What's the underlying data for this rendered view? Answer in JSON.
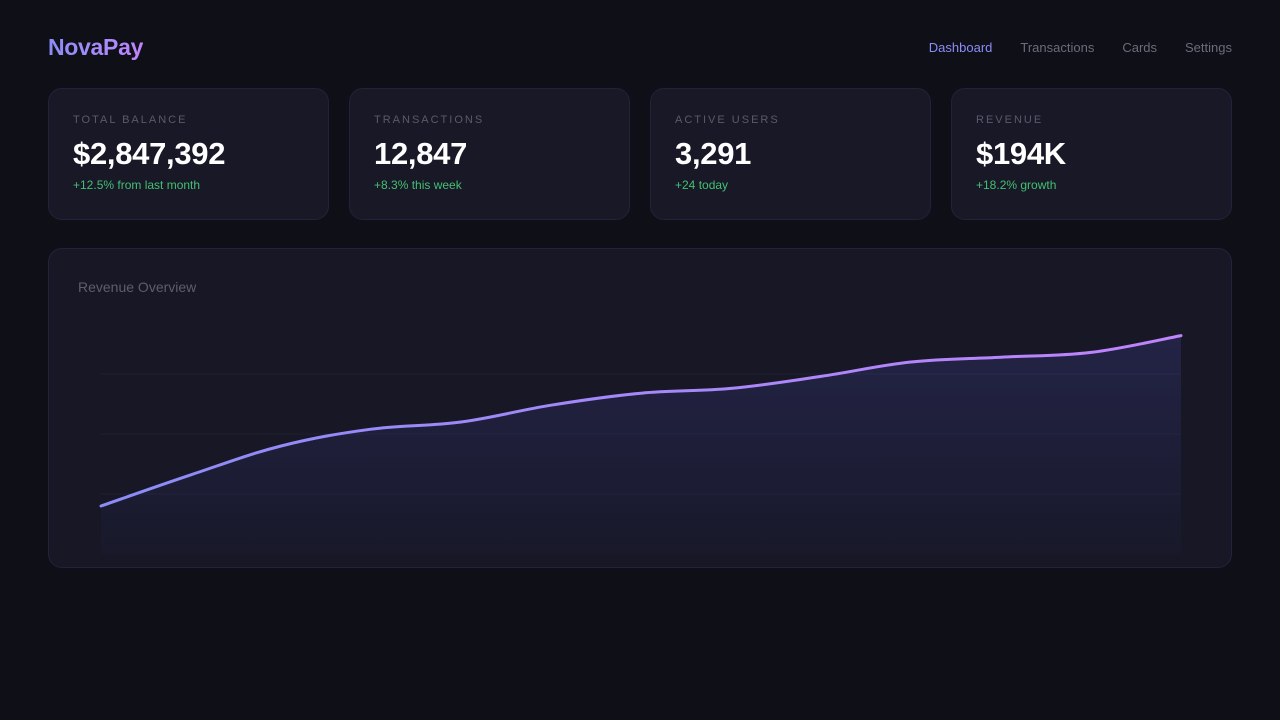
{
  "header": {
    "logo": "NovaPay",
    "nav": [
      {
        "label": "Dashboard",
        "active": true
      },
      {
        "label": "Transactions",
        "active": false
      },
      {
        "label": "Cards",
        "active": false
      },
      {
        "label": "Settings",
        "active": false
      }
    ]
  },
  "stats": [
    {
      "label": "TOTAL BALANCE",
      "value": "$2,847,392",
      "change": "+12.5% from last month"
    },
    {
      "label": "TRANSACTIONS",
      "value": "12,847",
      "change": "+8.3% this week"
    },
    {
      "label": "ACTIVE USERS",
      "value": "3,291",
      "change": "+24 today"
    },
    {
      "label": "REVENUE",
      "value": "$194K",
      "change": "+18.2% growth"
    }
  ],
  "chart": {
    "title": "Revenue Overview"
  },
  "colors": {
    "accent": "#8b8cf6",
    "accent_end": "#c084fc",
    "positive": "#4ade80",
    "background": "#0f0f17",
    "card": "#181827"
  },
  "chart_data": {
    "type": "area",
    "title": "Revenue Overview",
    "xlabel": "",
    "ylabel": "",
    "x": [
      0,
      1,
      2,
      3,
      4,
      5,
      6,
      7,
      8,
      9,
      10,
      11,
      12
    ],
    "values": [
      20,
      33,
      45,
      52,
      55,
      62,
      67,
      69,
      74,
      80,
      82,
      84,
      91
    ],
    "ylim": [
      0,
      100
    ],
    "grid": true,
    "legend": "none"
  }
}
